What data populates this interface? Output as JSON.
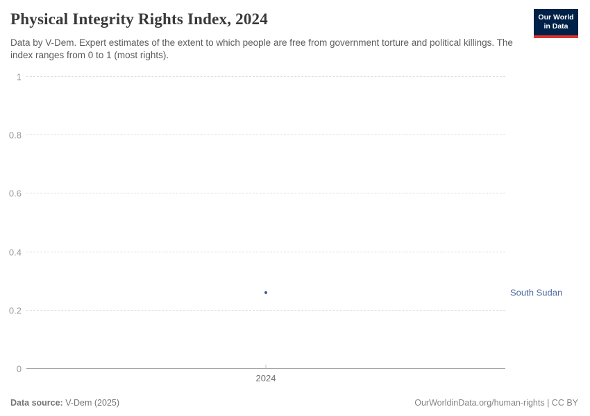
{
  "header": {
    "title": "Physical Integrity Rights Index, 2024",
    "subtitle": "Data by V-Dem. Expert estimates of the extent to which people are free from government torture and political killings. The index ranges from 0 to 1 (most rights).",
    "logo": {
      "line1": "Our World",
      "line2": "in Data",
      "bg_color": "#002147",
      "stripe_color": "#dc352c"
    }
  },
  "chart_data": {
    "type": "scatter",
    "title": "Physical Integrity Rights Index, 2024",
    "xlabel": "",
    "ylabel": "",
    "ylim": [
      0,
      1
    ],
    "xlim": [
      2023.5,
      2024.5
    ],
    "grid": "horizontal-dashed",
    "yticks": [
      {
        "value": 0,
        "label": "0"
      },
      {
        "value": 0.2,
        "label": "0.2"
      },
      {
        "value": 0.4,
        "label": "0.4"
      },
      {
        "value": 0.6,
        "label": "0.6"
      },
      {
        "value": 0.8,
        "label": "0.8"
      },
      {
        "value": 1,
        "label": "1"
      }
    ],
    "xticks": [
      {
        "value": 2024,
        "label": "2024"
      }
    ],
    "series": [
      {
        "name": "South Sudan",
        "color": "#3d5e93",
        "label_color": "#4c6a9d",
        "points": [
          {
            "x": 2024,
            "y": 0.26
          }
        ]
      }
    ],
    "colors": {
      "grid": "#dcdcdc",
      "axis": "#a5a5a5",
      "tick_text": "#999999"
    }
  },
  "footer": {
    "source_label": "Data source:",
    "source_value": "V-Dem (2025)",
    "rights": "OurWorldinData.org/human-rights | CC BY"
  }
}
